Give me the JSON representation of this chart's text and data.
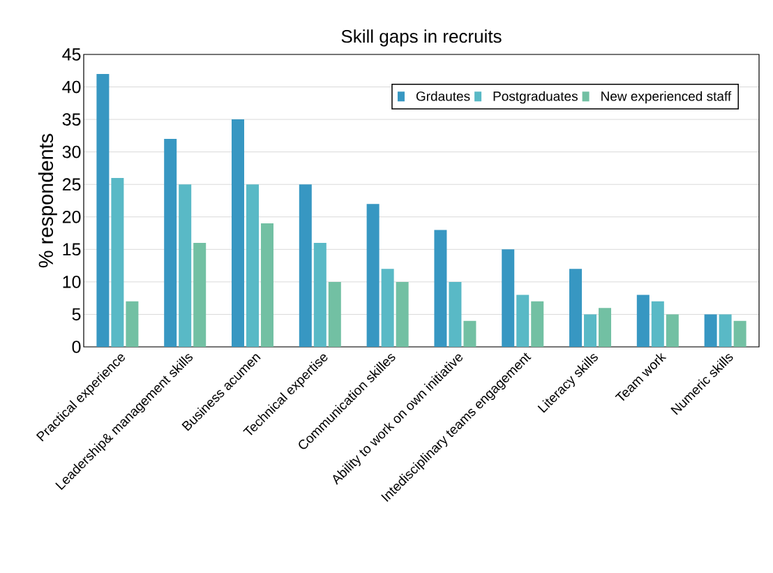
{
  "chart_data": {
    "type": "bar",
    "title": "Skill gaps in recruits",
    "ylabel": "% respondents",
    "categories": [
      "Practical experience",
      "Leadership& management skills",
      "Business acumen",
      "Technical expertise",
      "Communication skilles",
      "Ability to work on own initiative",
      "Intedisciplinary teams engagement",
      "Literacy skills",
      "Team work",
      "Numeric skills"
    ],
    "series": [
      {
        "name": "Grdautes",
        "color": "#3797c2",
        "values": [
          42,
          32,
          35,
          25,
          22,
          18,
          15,
          12,
          8,
          5
        ]
      },
      {
        "name": "Postgraduates",
        "color": "#59b9c6",
        "values": [
          26,
          25,
          25,
          16,
          12,
          10,
          8,
          5,
          7,
          5
        ]
      },
      {
        "name": "New experienced staff",
        "color": "#72c0a3",
        "values": [
          7,
          16,
          19,
          10,
          10,
          4,
          7,
          6,
          5,
          4
        ]
      }
    ],
    "ylim": [
      0,
      45
    ],
    "yticks": [
      0,
      5,
      10,
      15,
      20,
      25,
      30,
      35,
      40,
      45
    ],
    "grid": "y",
    "legend": "top right"
  }
}
